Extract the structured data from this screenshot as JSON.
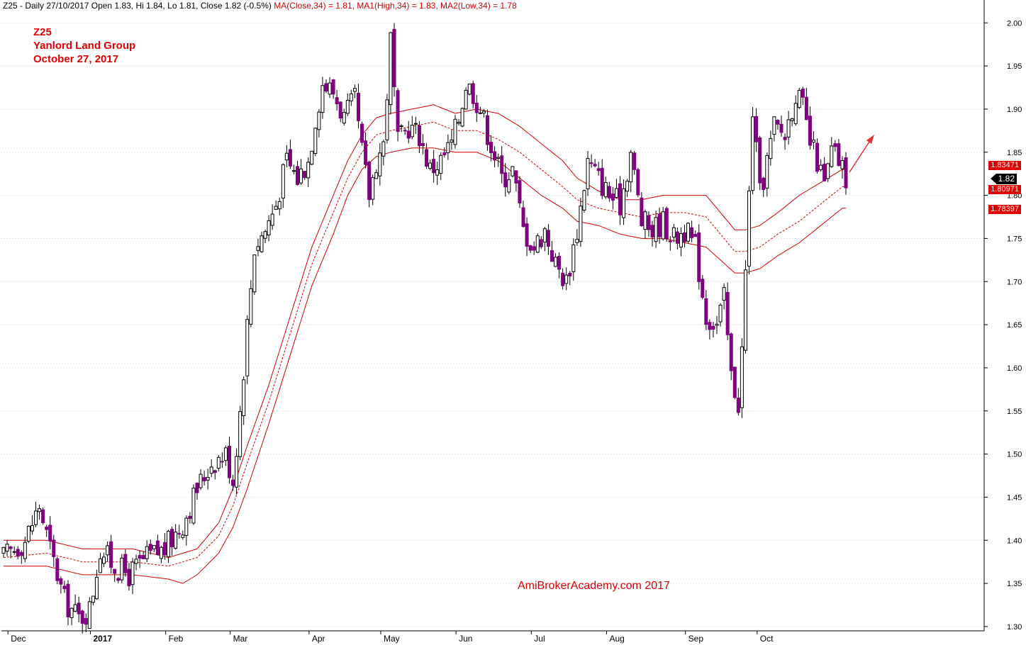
{
  "header": {
    "ticker_info": "Z25 - Daily 27/10/2017 Open 1.83, Hi 1.84, Lo 1.81, Close 1.82 (-0.5%)",
    "ma_close": "MA(Close,34) = 1.81,",
    "ma_high": "MA1(High,34) = 1.83,",
    "ma_low": "MA2(Low,34) = 1.78"
  },
  "title": {
    "line1": "Z25",
    "line2": "Yanlord Land Group",
    "line3": "October 27, 2017"
  },
  "watermark": "AmiBrokerAcademy.com  2017",
  "price_tags": {
    "current": "1.82",
    "ma_high": "1.83471",
    "ma_close": "1.80971",
    "ma_low": "1.78397"
  },
  "colors": {
    "candle_down": "#800080",
    "candle_up": "#ffffff",
    "ma": "#d40000",
    "arrow": "#e03030",
    "grid": "#c8c8c8"
  },
  "chart_data": {
    "type": "candlestick",
    "yticks": [
      "1.30",
      "1.35",
      "1.40",
      "1.45",
      "1.50",
      "1.55",
      "1.60",
      "1.65",
      "1.70",
      "1.75",
      "1.80",
      "1.85",
      "1.90",
      "1.95",
      "2.00"
    ],
    "ylim": [
      1.295,
      2.015
    ],
    "x_labels": [
      "Dec",
      "2017",
      "Feb",
      "Mar",
      "Apr",
      "May",
      "Jun",
      "Jul",
      "Aug",
      "Sep",
      "Oct"
    ],
    "x_label_bar_index": [
      4,
      27,
      48,
      66,
      88,
      108,
      129,
      150,
      171,
      193,
      213
    ],
    "total_bars": 236,
    "close_path": [
      [
        0,
        1.38
      ],
      [
        6,
        1.4
      ],
      [
        10,
        1.44
      ],
      [
        13,
        1.39
      ],
      [
        17,
        1.33
      ],
      [
        21,
        1.31
      ],
      [
        24,
        1.32
      ],
      [
        27,
        1.39
      ],
      [
        31,
        1.37
      ],
      [
        35,
        1.36
      ],
      [
        40,
        1.38
      ],
      [
        45,
        1.39
      ],
      [
        50,
        1.42
      ],
      [
        54,
        1.46
      ],
      [
        58,
        1.49
      ],
      [
        62,
        1.5
      ],
      [
        64,
        1.47
      ],
      [
        66,
        1.55
      ],
      [
        68,
        1.65
      ],
      [
        70,
        1.74
      ],
      [
        73,
        1.76
      ],
      [
        76,
        1.79
      ],
      [
        79,
        1.84
      ],
      [
        82,
        1.82
      ],
      [
        85,
        1.84
      ],
      [
        87,
        1.89
      ],
      [
        89,
        1.93
      ],
      [
        92,
        1.92
      ],
      [
        95,
        1.89
      ],
      [
        98,
        1.91
      ],
      [
        100,
        1.85
      ],
      [
        102,
        1.8
      ],
      [
        104,
        1.84
      ],
      [
        106,
        1.86
      ],
      [
        108,
        1.98
      ],
      [
        110,
        1.86
      ],
      [
        113,
        1.88
      ],
      [
        116,
        1.87
      ],
      [
        119,
        1.83
      ],
      [
        122,
        1.84
      ],
      [
        125,
        1.86
      ],
      [
        127,
        1.89
      ],
      [
        129,
        1.93
      ],
      [
        131,
        1.92
      ],
      [
        133,
        1.9
      ],
      [
        136,
        1.86
      ],
      [
        139,
        1.82
      ],
      [
        142,
        1.83
      ],
      [
        145,
        1.76
      ],
      [
        148,
        1.74
      ],
      [
        151,
        1.76
      ],
      [
        154,
        1.72
      ],
      [
        157,
        1.7
      ],
      [
        160,
        1.76
      ],
      [
        163,
        1.84
      ],
      [
        166,
        1.82
      ],
      [
        169,
        1.8
      ],
      [
        172,
        1.79
      ],
      [
        175,
        1.85
      ],
      [
        178,
        1.77
      ],
      [
        181,
        1.76
      ],
      [
        184,
        1.77
      ],
      [
        187,
        1.75
      ],
      [
        190,
        1.76
      ],
      [
        193,
        1.74
      ],
      [
        196,
        1.66
      ],
      [
        199,
        1.65
      ],
      [
        201,
        1.68
      ],
      [
        203,
        1.59
      ],
      [
        205,
        1.56
      ],
      [
        206,
        1.62
      ],
      [
        208,
        1.8
      ],
      [
        209,
        1.9
      ],
      [
        211,
        1.8
      ],
      [
        213,
        1.84
      ],
      [
        215,
        1.88
      ],
      [
        218,
        1.87
      ],
      [
        221,
        1.92
      ],
      [
        223,
        1.9
      ],
      [
        225,
        1.86
      ],
      [
        227,
        1.84
      ],
      [
        229,
        1.81
      ],
      [
        231,
        1.85
      ],
      [
        233,
        1.84
      ],
      [
        235,
        1.82
      ]
    ],
    "ma_high_path": [
      [
        0,
        1.4
      ],
      [
        12,
        1.4
      ],
      [
        22,
        1.39
      ],
      [
        36,
        1.39
      ],
      [
        46,
        1.38
      ],
      [
        54,
        1.39
      ],
      [
        60,
        1.42
      ],
      [
        64,
        1.46
      ],
      [
        68,
        1.51
      ],
      [
        74,
        1.58
      ],
      [
        80,
        1.66
      ],
      [
        86,
        1.74
      ],
      [
        92,
        1.8
      ],
      [
        96,
        1.84
      ],
      [
        100,
        1.87
      ],
      [
        104,
        1.89
      ],
      [
        108,
        1.895
      ],
      [
        114,
        1.9
      ],
      [
        120,
        1.905
      ],
      [
        126,
        1.895
      ],
      [
        132,
        1.9
      ],
      [
        138,
        1.895
      ],
      [
        144,
        1.88
      ],
      [
        150,
        1.86
      ],
      [
        156,
        1.84
      ],
      [
        160,
        1.82
      ],
      [
        166,
        1.805
      ],
      [
        172,
        1.795
      ],
      [
        178,
        1.795
      ],
      [
        184,
        1.8
      ],
      [
        190,
        1.8
      ],
      [
        196,
        1.8
      ],
      [
        200,
        1.78
      ],
      [
        204,
        1.76
      ],
      [
        207,
        1.76
      ],
      [
        211,
        1.765
      ],
      [
        216,
        1.78
      ],
      [
        222,
        1.8
      ],
      [
        228,
        1.815
      ],
      [
        234,
        1.83
      ]
    ],
    "ma_close_path": [
      [
        0,
        1.38
      ],
      [
        12,
        1.385
      ],
      [
        22,
        1.375
      ],
      [
        36,
        1.375
      ],
      [
        46,
        1.37
      ],
      [
        54,
        1.38
      ],
      [
        60,
        1.405
      ],
      [
        64,
        1.44
      ],
      [
        68,
        1.49
      ],
      [
        74,
        1.56
      ],
      [
        80,
        1.64
      ],
      [
        86,
        1.72
      ],
      [
        92,
        1.78
      ],
      [
        96,
        1.82
      ],
      [
        100,
        1.85
      ],
      [
        104,
        1.87
      ],
      [
        108,
        1.875
      ],
      [
        114,
        1.88
      ],
      [
        120,
        1.885
      ],
      [
        126,
        1.875
      ],
      [
        132,
        1.875
      ],
      [
        138,
        1.865
      ],
      [
        144,
        1.85
      ],
      [
        150,
        1.83
      ],
      [
        156,
        1.81
      ],
      [
        160,
        1.795
      ],
      [
        166,
        1.785
      ],
      [
        172,
        1.78
      ],
      [
        178,
        1.775
      ],
      [
        184,
        1.78
      ],
      [
        190,
        1.78
      ],
      [
        196,
        1.775
      ],
      [
        200,
        1.755
      ],
      [
        204,
        1.735
      ],
      [
        207,
        1.735
      ],
      [
        211,
        1.74
      ],
      [
        216,
        1.755
      ],
      [
        222,
        1.77
      ],
      [
        228,
        1.79
      ],
      [
        234,
        1.81
      ]
    ],
    "ma_low_path": [
      [
        0,
        1.37
      ],
      [
        12,
        1.37
      ],
      [
        22,
        1.36
      ],
      [
        36,
        1.36
      ],
      [
        46,
        1.355
      ],
      [
        50,
        1.35
      ],
      [
        54,
        1.36
      ],
      [
        60,
        1.385
      ],
      [
        64,
        1.415
      ],
      [
        68,
        1.46
      ],
      [
        74,
        1.535
      ],
      [
        80,
        1.615
      ],
      [
        86,
        1.695
      ],
      [
        92,
        1.755
      ],
      [
        96,
        1.8
      ],
      [
        100,
        1.83
      ],
      [
        104,
        1.845
      ],
      [
        108,
        1.85
      ],
      [
        114,
        1.855
      ],
      [
        120,
        1.855
      ],
      [
        126,
        1.85
      ],
      [
        132,
        1.85
      ],
      [
        138,
        1.84
      ],
      [
        144,
        1.82
      ],
      [
        150,
        1.8
      ],
      [
        156,
        1.785
      ],
      [
        160,
        1.77
      ],
      [
        166,
        1.765
      ],
      [
        172,
        1.755
      ],
      [
        178,
        1.75
      ],
      [
        184,
        1.75
      ],
      [
        190,
        1.745
      ],
      [
        196,
        1.74
      ],
      [
        200,
        1.725
      ],
      [
        204,
        1.71
      ],
      [
        207,
        1.71
      ],
      [
        211,
        1.715
      ],
      [
        216,
        1.73
      ],
      [
        222,
        1.745
      ],
      [
        228,
        1.765
      ],
      [
        234,
        1.785
      ]
    ]
  }
}
